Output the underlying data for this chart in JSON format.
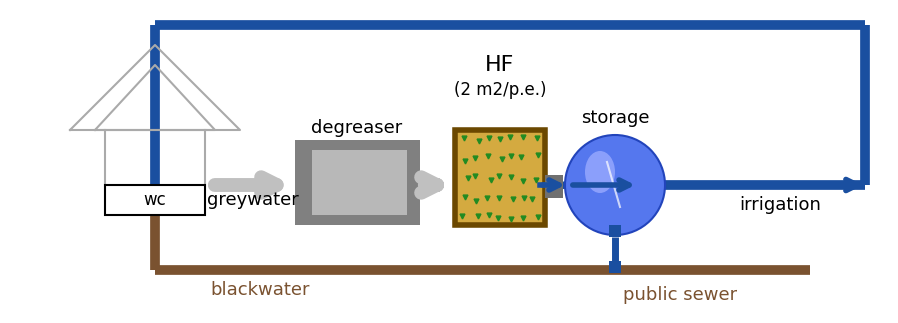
{
  "bg_color": "#ffffff",
  "blue_pipe_color": "#1a4fa0",
  "brown_pipe_color": "#7a5230",
  "gray_arrow_color": "#c0c0c0",
  "house_edge": "#aaaaaa",
  "wc_color": "#ffffff",
  "wc_edge": "#000000",
  "degreaser_outer": "#808080",
  "degreaser_inner": "#b8b8b8",
  "hf_border": "#6b4800",
  "hf_fill": "#d4aa40",
  "hf_plant_color": "#228B22",
  "storage_color": "#5577ee",
  "storage_edge": "#2244bb",
  "storage_hi": "#99aaff",
  "small_box_color": "#707070",
  "text_color": "#000000",
  "brown_text": "#7a5230",
  "labels": {
    "degreaser": "degreaser",
    "hf": "HF",
    "hf_sub": "(2 m2/p.e.)",
    "storage": "storage",
    "greywater": "greywater",
    "blackwater": "blackwater",
    "irrigation": "irrigation",
    "public_sewer": "public sewer",
    "wc": "wc"
  },
  "figsize": [
    8.98,
    3.23
  ],
  "dpi": 100
}
